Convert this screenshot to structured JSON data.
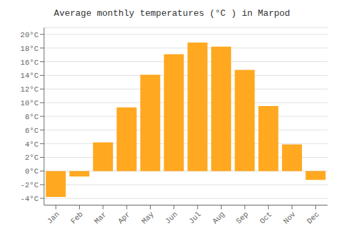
{
  "chart_data": {
    "type": "bar",
    "title": "Average monthly temperatures (°C ) in Marpod",
    "categories": [
      "Jan",
      "Feb",
      "Mar",
      "Apr",
      "May",
      "Jun",
      "Jul",
      "Aug",
      "Sep",
      "Oct",
      "Nov",
      "Dec"
    ],
    "values": [
      -3.8,
      -0.8,
      4.2,
      9.3,
      14.1,
      17.1,
      18.8,
      18.2,
      14.8,
      9.5,
      3.9,
      -1.3
    ],
    "color": "#FFA820",
    "ylim": [
      -5,
      21
    ],
    "yticks": [
      {
        "value": -4,
        "label": "-4°C"
      },
      {
        "value": -2,
        "label": "-2°C"
      },
      {
        "value": 0,
        "label": "0°C"
      },
      {
        "value": 2,
        "label": "2°C"
      },
      {
        "value": 4,
        "label": "4°C"
      },
      {
        "value": 6,
        "label": "6°C"
      },
      {
        "value": 8,
        "label": "8°C"
      },
      {
        "value": 10,
        "label": "10°C"
      },
      {
        "value": 12,
        "label": "12°C"
      },
      {
        "value": 14,
        "label": "14°C"
      },
      {
        "value": 16,
        "label": "16°C"
      },
      {
        "value": 18,
        "label": "18°C"
      },
      {
        "value": 20,
        "label": "20°C"
      }
    ],
    "grid": true
  }
}
